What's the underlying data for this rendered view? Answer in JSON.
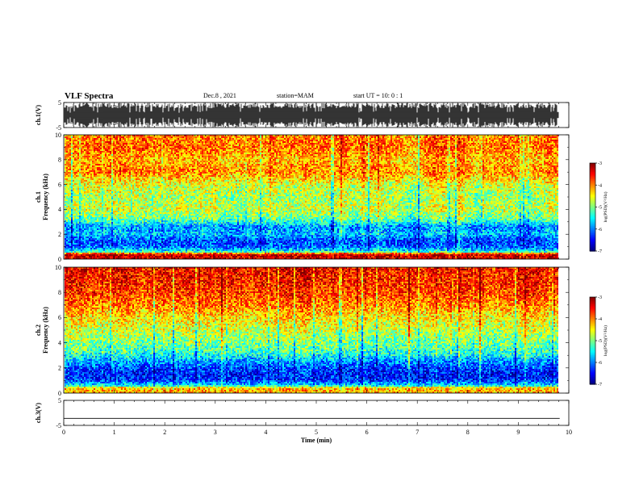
{
  "header": {
    "title": "VLF Spectra",
    "date": "Dec.8 , 2021",
    "station": "station=MAM",
    "start_ut": "start UT =  10: 0 : 1"
  },
  "chart_data": [
    {
      "type": "line",
      "panel": "ch1-waveform",
      "ylabel": "ch.1(V)",
      "ylim": [
        -5,
        5
      ],
      "yticks": [
        "5",
        "-5"
      ],
      "x_range_min": [
        0,
        10
      ],
      "data_extent_min": [
        0,
        9.82
      ],
      "note": "dense black waveform filling most of the panel"
    },
    {
      "type": "heatmap",
      "panel": "ch1-spectrogram",
      "ylabel_line1": "ch.1",
      "ylabel_line2": "Frequency (kHz)",
      "ylim": [
        0,
        10
      ],
      "yticks": [
        "0",
        "2",
        "4",
        "6",
        "8",
        "10"
      ],
      "profile_rows_khz": [
        0.4,
        0.6,
        1.0,
        1.5,
        2.0,
        2.6,
        3.2,
        4.0,
        5.0,
        6.0,
        7.0,
        8.0,
        9.0,
        10.0
      ],
      "log_psd_profile": [
        -3.3,
        -5.4,
        -6.1,
        -6.2,
        -5.7,
        -5.9,
        -5.1,
        -4.7,
        -4.8,
        -4.6,
        -4.0,
        -4.2,
        -3.9,
        -4.0
      ],
      "colorbar": {
        "label": "log(PSD)(V²/Hz)",
        "range": [
          -7,
          -3
        ],
        "ticks": [
          "-3",
          "-4",
          "-5",
          "-6",
          "-7"
        ]
      }
    },
    {
      "type": "heatmap",
      "panel": "ch2-spectrogram",
      "ylabel_line1": "ch.2",
      "ylabel_line2": "Frequency (kHz)",
      "ylim": [
        0,
        10
      ],
      "yticks": [
        "0",
        "2",
        "4",
        "6",
        "8",
        "10"
      ],
      "profile_rows_khz": [
        0.4,
        0.6,
        1.0,
        1.5,
        2.0,
        2.6,
        3.2,
        4.0,
        5.0,
        6.0,
        7.0,
        8.0,
        9.0,
        10.0
      ],
      "log_psd_profile": [
        -4.2,
        -5.5,
        -6.3,
        -6.4,
        -6.2,
        -5.8,
        -5.3,
        -5.0,
        -4.7,
        -4.4,
        -4.0,
        -3.7,
        -3.6,
        -3.5
      ],
      "colorbar": {
        "label": "log(PSD)(V²/Hz)",
        "range": [
          -7,
          -3
        ],
        "ticks": [
          "-3",
          "-4",
          "-5",
          "-6",
          "-7"
        ]
      }
    },
    {
      "type": "line",
      "panel": "ch3-waveform",
      "ylabel": "ch.3(V)",
      "ylim": [
        -5,
        5
      ],
      "yticks": [
        "5",
        "-5"
      ],
      "series": [
        {
          "x": [
            0,
            9.82
          ],
          "y": [
            -2.2,
            -2.2
          ]
        }
      ]
    }
  ],
  "xaxis": {
    "label": "Time (min)",
    "ticks": [
      "0",
      "1",
      "2",
      "3",
      "4",
      "5",
      "6",
      "7",
      "8",
      "9",
      "10"
    ],
    "range": [
      0,
      10
    ]
  },
  "colors": {
    "axis": "#000000",
    "waveform": "#000000"
  }
}
